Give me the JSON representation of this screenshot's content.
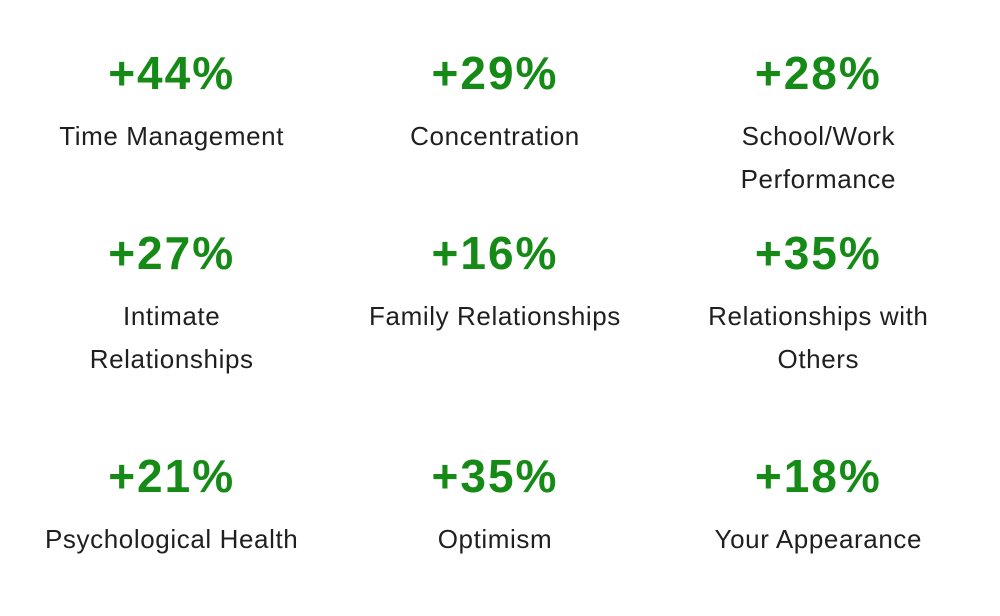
{
  "colors": {
    "stat_green": "#168a16",
    "label_dark": "#1f1f1f",
    "background": "#ffffff"
  },
  "stats": [
    {
      "value": "+44%",
      "label": "Time Management"
    },
    {
      "value": "+29%",
      "label": "Concentration"
    },
    {
      "value": "+28%",
      "label": "School/Work\nPerformance"
    },
    {
      "value": "+27%",
      "label": "Intimate\nRelationships"
    },
    {
      "value": "+16%",
      "label": "Family Relationships"
    },
    {
      "value": "+35%",
      "label": "Relationships with\nOthers"
    },
    {
      "value": "+21%",
      "label": "Psychological Health"
    },
    {
      "value": "+35%",
      "label": "Optimism"
    },
    {
      "value": "+18%",
      "label": "Your Appearance"
    }
  ],
  "chart_data": {
    "type": "table",
    "title": "",
    "categories": [
      "Time Management",
      "Concentration",
      "School/Work Performance",
      "Intimate Relationships",
      "Family Relationships",
      "Relationships with Others",
      "Psychological Health",
      "Optimism",
      "Your Appearance"
    ],
    "values": [
      44,
      29,
      28,
      27,
      16,
      35,
      21,
      35,
      18
    ],
    "unit": "%",
    "value_prefix": "+",
    "layout": "3x3 grid of stat callouts; green bold percentage above dark label, centered, white background"
  }
}
